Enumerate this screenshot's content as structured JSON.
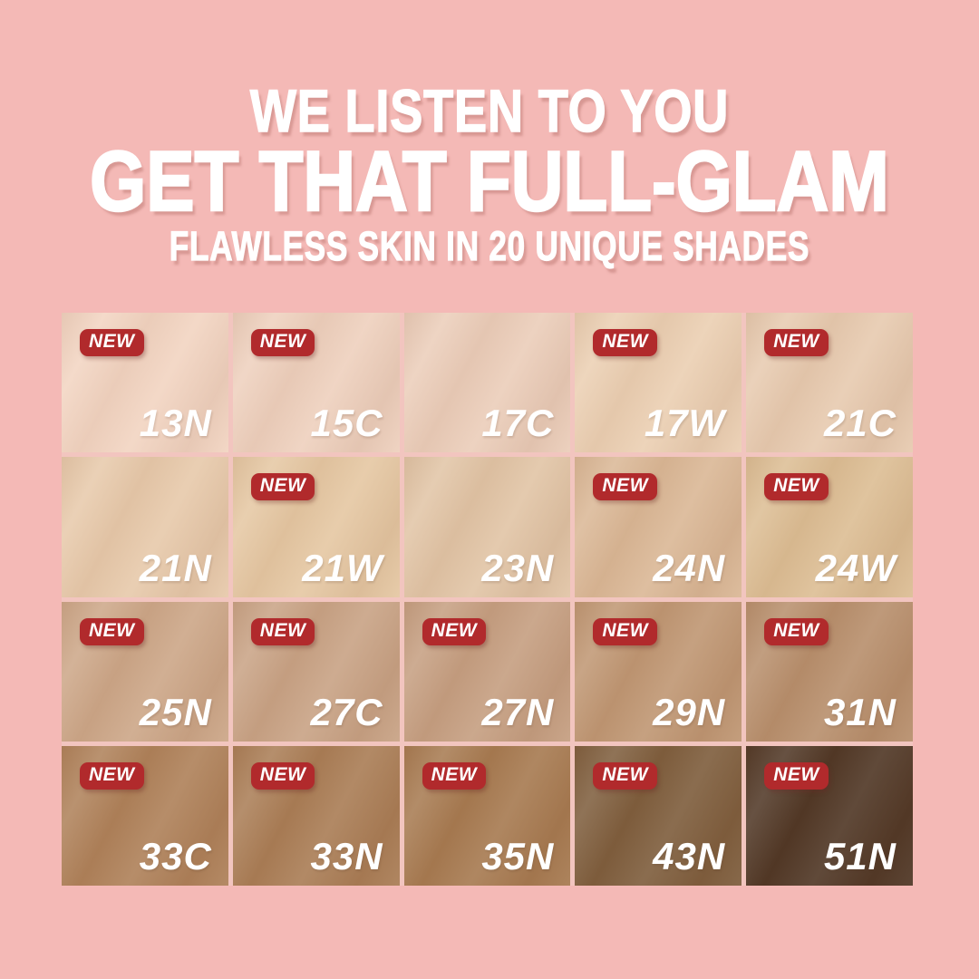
{
  "page": {
    "background_color": "#f4b9b6"
  },
  "header": {
    "line1": "WE LISTEN TO YOU",
    "line2": "GET THAT FULL-GLAM",
    "line3": "FLAWLESS SKIN IN 20 UNIQUE SHADES",
    "text_color": "#ffffff"
  },
  "badge": {
    "label": "NEW",
    "background_color": "#b12a2c",
    "text_color": "#ffffff"
  },
  "shade_grid": {
    "rows": 4,
    "columns": 5,
    "label_color": "#ffffff",
    "shades": [
      {
        "code": "13N",
        "color": "#f2d4c1",
        "new": true
      },
      {
        "code": "15C",
        "color": "#eed0bd",
        "new": true
      },
      {
        "code": "17C",
        "color": "#ebcdb9",
        "new": false
      },
      {
        "code": "17W",
        "color": "#ebcfb2",
        "new": true
      },
      {
        "code": "21C",
        "color": "#e7caaf",
        "new": true
      },
      {
        "code": "21N",
        "color": "#e7c9aa",
        "new": false
      },
      {
        "code": "21W",
        "color": "#e5c7a2",
        "new": true
      },
      {
        "code": "23N",
        "color": "#e1c4a5",
        "new": false
      },
      {
        "code": "24N",
        "color": "#dab795",
        "new": true
      },
      {
        "code": "24W",
        "color": "#dcbd93",
        "new": true
      },
      {
        "code": "25N",
        "color": "#cca687",
        "new": true
      },
      {
        "code": "27C",
        "color": "#c8a284",
        "new": true
      },
      {
        "code": "27N",
        "color": "#c59e80",
        "new": true
      },
      {
        "code": "29N",
        "color": "#bf9672",
        "new": true
      },
      {
        "code": "31N",
        "color": "#b78e6b",
        "new": true
      },
      {
        "code": "33C",
        "color": "#ae8058",
        "new": true
      },
      {
        "code": "33N",
        "color": "#a97c54",
        "new": true
      },
      {
        "code": "35N",
        "color": "#a6794f",
        "new": true
      },
      {
        "code": "43N",
        "color": "#7d5c3b",
        "new": true
      },
      {
        "code": "51N",
        "color": "#4e3523",
        "new": true
      }
    ]
  }
}
